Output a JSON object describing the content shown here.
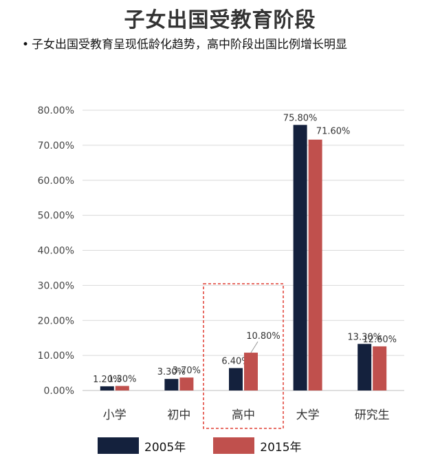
{
  "title": "子女出国受教育阶段",
  "subtitle": "子女出国受教育呈现低龄化趋势，高中阶段出国比例增长明显",
  "colors": {
    "series_2005": "#14213d",
    "series_2015": "#c0504d",
    "grid": "#d9d9d9",
    "highlight_box": "#e03c31"
  },
  "chart_data": {
    "type": "bar",
    "categories": [
      "小学",
      "初中",
      "高中",
      "大学",
      "研究生"
    ],
    "series": [
      {
        "name": "2005年",
        "values": [
          1.2,
          3.3,
          6.4,
          75.8,
          13.3
        ],
        "labels": [
          "1.20%",
          "3.30%",
          "6.40%",
          "75.80%",
          "13.30%"
        ]
      },
      {
        "name": "2015年",
        "values": [
          1.3,
          3.7,
          10.8,
          71.6,
          12.6
        ],
        "labels": [
          "1.30%",
          "3.70%",
          "10.80%",
          "71.60%",
          "12.60%"
        ]
      }
    ],
    "yticks": [
      "0.00%",
      "10.00%",
      "20.00%",
      "30.00%",
      "40.00%",
      "50.00%",
      "60.00%",
      "70.00%",
      "80.00%"
    ],
    "ylim": [
      0,
      80
    ],
    "grid": true,
    "legend": "bottom",
    "highlight_category": "高中"
  }
}
